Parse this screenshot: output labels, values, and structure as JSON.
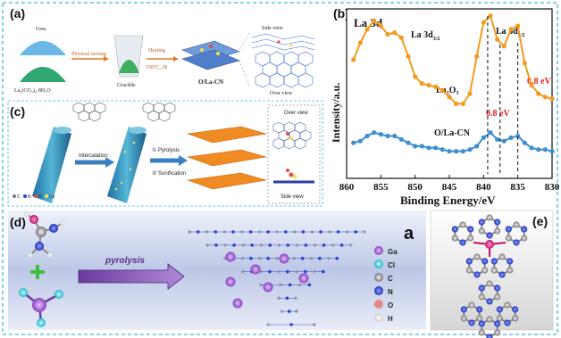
{
  "panel_a": {
    "label": "(a)",
    "urea": "Urea",
    "precursor": "La₂(CO₃)₃·8H₂O",
    "mixing": "Physical mixing",
    "crucible": "Crucible",
    "heating": "Heating",
    "heating_cond": "550°C, 2h",
    "product": "O/La-CN",
    "side_view": "Side view",
    "over_view": "Over view"
  },
  "panel_b": {
    "label": "(b)",
    "title": "La 3d",
    "peak_left": "La 3d",
    "peak_left_sub": "3/2",
    "peak_right": "La 3d",
    "peak_right_sub": "5/2",
    "series_top": "La₂O₃",
    "series_bottom": "O/La-CN",
    "shift_1": "0.8 eV",
    "shift_2": "0.8 eV",
    "ylabel": "Intensity/a.u.",
    "xlabel": "Binding Energy/eV",
    "colors": {
      "top": "#f39a1e",
      "bottom": "#3d8fd0",
      "shift": "#e0221b"
    }
  },
  "panel_c": {
    "label": "(c)",
    "intercalation": "Intercalation",
    "pyrolysis": "① Pyrolysis",
    "sonification": "② Sonification",
    "over_view": "Over view",
    "side_view": "Side view",
    "legend": [
      "C",
      "N",
      "O",
      "Ce"
    ]
  },
  "panel_d": {
    "label": "(d)",
    "pyrolysis": "pyrolysis",
    "corner": "a",
    "legend": [
      "Ga",
      "Cl",
      "C",
      "N",
      "O",
      "H"
    ],
    "legend_colors": [
      "#a45cd0",
      "#3fd8e0",
      "#bfbfbf",
      "#2c3fd6",
      "#e08a80",
      "#f0f0f0"
    ]
  },
  "panel_e": {
    "label": "(e)"
  },
  "chart_data": {
    "type": "line",
    "title": "La 3d",
    "xlabel": "Binding Energy/eV",
    "ylabel": "Intensity/a.u.",
    "xlim": [
      860,
      830
    ],
    "x_ticks": [
      860,
      855,
      850,
      845,
      840,
      835,
      830
    ],
    "series": [
      {
        "name": "La₂O₃",
        "x": [
          859,
          858,
          857,
          856,
          855,
          854,
          853,
          852,
          851,
          850,
          849,
          848,
          847,
          846,
          845,
          844,
          843,
          842,
          841,
          840,
          839,
          838,
          837,
          836,
          835,
          834,
          833,
          832,
          831,
          830
        ],
        "y": [
          0.7,
          0.8,
          0.88,
          0.93,
          0.9,
          0.85,
          0.86,
          0.83,
          0.72,
          0.6,
          0.56,
          0.55,
          0.54,
          0.52,
          0.48,
          0.44,
          0.44,
          0.5,
          0.72,
          0.92,
          0.96,
          0.82,
          0.78,
          0.88,
          0.9,
          0.68,
          0.55,
          0.5,
          0.48,
          0.47
        ]
      },
      {
        "name": "O/La-CN",
        "x": [
          859,
          858,
          857,
          856,
          855,
          854,
          853,
          852,
          851,
          850,
          849,
          848,
          847,
          846,
          845,
          844,
          843,
          842,
          841,
          840,
          839,
          838,
          837,
          836,
          835,
          834,
          833,
          832,
          831,
          830
        ],
        "y": [
          0.21,
          0.22,
          0.25,
          0.27,
          0.26,
          0.25,
          0.25,
          0.23,
          0.21,
          0.19,
          0.19,
          0.18,
          0.18,
          0.17,
          0.16,
          0.16,
          0.16,
          0.17,
          0.19,
          0.24,
          0.27,
          0.23,
          0.22,
          0.24,
          0.25,
          0.21,
          0.18,
          0.17,
          0.17,
          0.16
        ]
      }
    ]
  }
}
